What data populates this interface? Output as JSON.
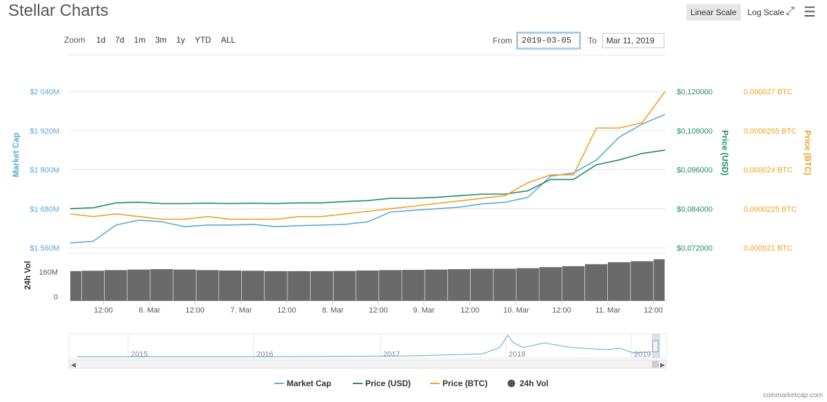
{
  "header": {
    "title": "Stellar Charts",
    "linear_scale": "Linear Scale",
    "log_scale": "Log Scale",
    "fullscreen_icon": "fullscreen-icon",
    "menu_icon": "hamburger-menu-icon"
  },
  "zoom": {
    "label": "Zoom",
    "buttons": [
      "1d",
      "7d",
      "1m",
      "3m",
      "1y",
      "YTD",
      "ALL"
    ]
  },
  "range": {
    "from_label": "From",
    "from_value": "2019-03-05",
    "to_label": "To",
    "to_value": "Mar 11, 2019"
  },
  "axes": {
    "market_cap_label": "Market Cap",
    "market_cap_ticks": [
      "$2 040M",
      "$1 920M",
      "$1 800M",
      "$1 680M",
      "$1 560M"
    ],
    "price_usd_label": "Price (USD)",
    "price_usd_ticks": [
      "$0,120000",
      "$0,108000",
      "$0,096000",
      "$0,084000",
      "$0,072000"
    ],
    "price_btc_label": "Price (BTC)",
    "price_btc_ticks": [
      "0,000027 BTC",
      "0,0000255 BTC",
      "0,000024 BTC",
      "0,0000225 BTC",
      "0,000021 BTC"
    ],
    "vol_label": "24h Vol",
    "vol_ticks": [
      "160M",
      "0"
    ],
    "x_ticks": [
      "12:00",
      "6. Mar",
      "12:00",
      "7. Mar",
      "12:00",
      "8. Mar",
      "12:00",
      "9. Mar",
      "12:00",
      "10. Mar",
      "12:00",
      "11. Mar",
      "12:00"
    ]
  },
  "navigator": {
    "years": [
      "2015",
      "2016",
      "2017",
      "2018",
      "2019"
    ]
  },
  "legend": [
    {
      "label": "Market Cap",
      "color": "#5aa8d6",
      "kind": "line"
    },
    {
      "label": "Price (USD)",
      "color": "#1e8a64",
      "kind": "line"
    },
    {
      "label": "Price (BTC)",
      "color": "#f0a020",
      "kind": "line"
    },
    {
      "label": "24h Vol",
      "color": "#555555",
      "kind": "dot"
    }
  ],
  "credit": "coinmarketcap.com",
  "chart_data": {
    "type": "line",
    "x": [
      "2019-03-05 06:00",
      "2019-03-05 12:00",
      "2019-03-05 18:00",
      "2019-03-06 00:00",
      "2019-03-06 06:00",
      "2019-03-06 12:00",
      "2019-03-06 18:00",
      "2019-03-07 00:00",
      "2019-03-07 06:00",
      "2019-03-07 12:00",
      "2019-03-07 18:00",
      "2019-03-08 00:00",
      "2019-03-08 06:00",
      "2019-03-08 12:00",
      "2019-03-08 18:00",
      "2019-03-09 00:00",
      "2019-03-09 06:00",
      "2019-03-09 12:00",
      "2019-03-09 18:00",
      "2019-03-10 00:00",
      "2019-03-10 06:00",
      "2019-03-10 12:00",
      "2019-03-10 18:00",
      "2019-03-11 00:00",
      "2019-03-11 06:00",
      "2019-03-11 12:00",
      "2019-03-11 15:00"
    ],
    "series": [
      {
        "name": "Market Cap",
        "axis": "left",
        "values": [
          1575,
          1580,
          1630,
          1645,
          1640,
          1625,
          1630,
          1630,
          1632,
          1625,
          1628,
          1630,
          1632,
          1640,
          1670,
          1675,
          1680,
          1685,
          1695,
          1700,
          1715,
          1780,
          1790,
          1830,
          1900,
          1940,
          1970
        ]
      },
      {
        "name": "Price (USD)",
        "axis": "right",
        "values": [
          0.084,
          0.0843,
          0.0858,
          0.086,
          0.0856,
          0.0856,
          0.0857,
          0.0856,
          0.0857,
          0.0856,
          0.0858,
          0.0858,
          0.0862,
          0.0865,
          0.0872,
          0.0872,
          0.0875,
          0.088,
          0.0885,
          0.0885,
          0.0895,
          0.093,
          0.093,
          0.0975,
          0.099,
          0.101,
          0.102
        ]
      },
      {
        "name": "Price (BTC)",
        "axis": "right2",
        "values": [
          2.23e-05,
          2.22e-05,
          2.23e-05,
          2.22e-05,
          2.21e-05,
          2.21e-05,
          2.22e-05,
          2.21e-05,
          2.21e-05,
          2.21e-05,
          2.22e-05,
          2.22e-05,
          2.23e-05,
          2.24e-05,
          2.25e-05,
          2.26e-05,
          2.27e-05,
          2.28e-05,
          2.29e-05,
          2.3e-05,
          2.35e-05,
          2.38e-05,
          2.38e-05,
          2.56e-05,
          2.56e-05,
          2.58e-05,
          2.7e-05
        ]
      },
      {
        "name": "24h Vol",
        "axis": "vol",
        "values": [
          150,
          152,
          155,
          158,
          160,
          158,
          155,
          153,
          152,
          150,
          150,
          150,
          151,
          153,
          155,
          156,
          158,
          160,
          162,
          162,
          165,
          170,
          175,
          185,
          195,
          200,
          210
        ]
      }
    ],
    "ylim_market_cap": [
      1560,
      2040
    ],
    "ylim_price_usd": [
      0.072,
      0.12
    ],
    "ylim_price_btc": [
      2.1e-05,
      2.7e-05
    ],
    "ylim_vol": [
      0,
      240
    ],
    "legend_position": "bottom"
  }
}
